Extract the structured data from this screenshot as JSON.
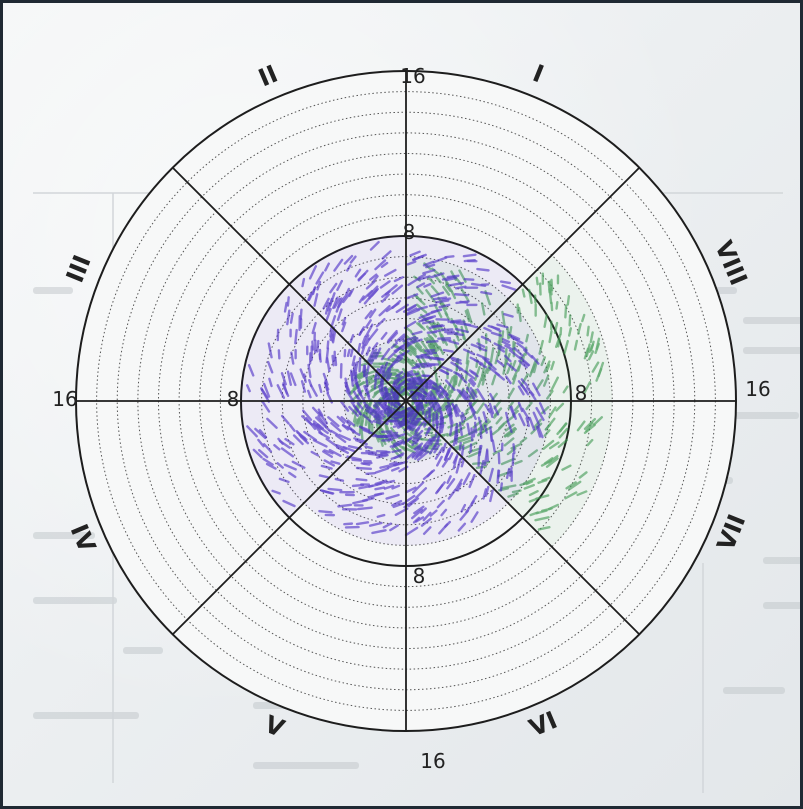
{
  "chart_data": {
    "type": "radar",
    "axis_scale": {
      "ticks": [
        "8",
        "16"
      ],
      "max": 16,
      "rings": 16
    },
    "sectors": [
      "I",
      "II",
      "III",
      "IV",
      "V",
      "VI",
      "VII",
      "VIII"
    ],
    "series": [
      {
        "values": [
          7,
          3,
          3,
          3,
          3,
          3,
          10,
          10
        ],
        "color": "#3f9a52"
      },
      {
        "values": [
          8,
          8,
          8,
          8,
          7,
          7,
          7,
          7
        ],
        "color": "#4a2bc6"
      }
    ],
    "grid": true
  },
  "icons": {
    "style": "hand-drawn hatching"
  }
}
